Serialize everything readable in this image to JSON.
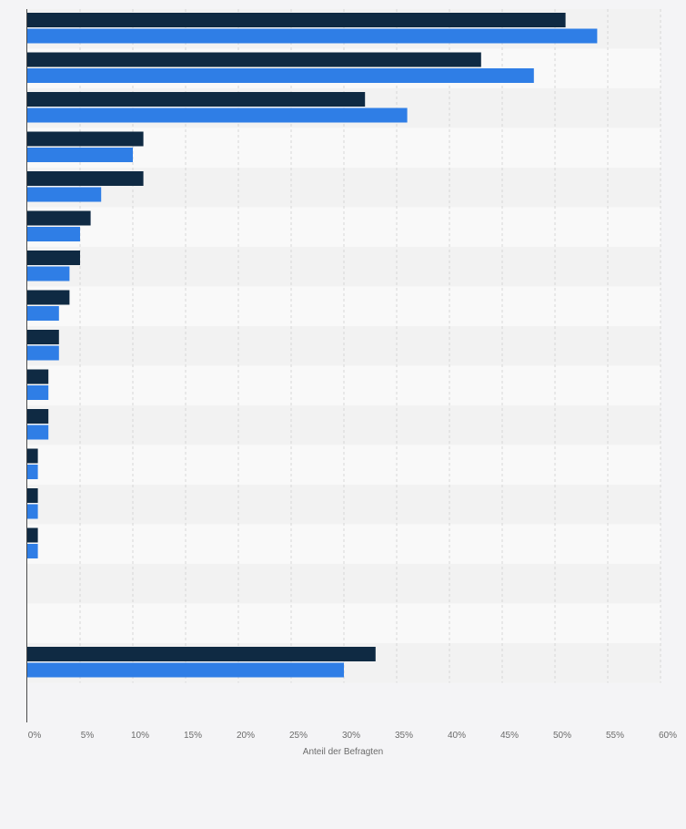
{
  "chart_data": {
    "type": "bar",
    "orientation": "horizontal",
    "categories": [
      "",
      "",
      "",
      "",
      "",
      "",
      "",
      "",
      "",
      "",
      "",
      "",
      "",
      "",
      "",
      "",
      ""
    ],
    "series": [
      {
        "color": "#0f2a43",
        "values": [
          51,
          43,
          32,
          11,
          11,
          6,
          5,
          4,
          3,
          2,
          2,
          1,
          1,
          1,
          0,
          0,
          33
        ]
      },
      {
        "color": "#2f7ee6",
        "values": [
          54,
          48,
          36,
          10,
          7,
          5,
          4,
          3,
          3,
          2,
          2,
          1,
          1,
          1,
          0,
          0,
          30
        ]
      }
    ],
    "xlabel": "Anteil der Befragten",
    "ylabel": "",
    "xlim": [
      0,
      60
    ],
    "xticks": [
      0,
      5,
      10,
      15,
      20,
      25,
      30,
      35,
      40,
      45,
      50,
      55,
      60
    ],
    "xtick_labels": [
      "0%",
      "5%",
      "10%",
      "15%",
      "20%",
      "25%",
      "30%",
      "35%",
      "40%",
      "45%",
      "50%",
      "55%",
      "60%"
    ],
    "grid": true,
    "legend": "none"
  }
}
